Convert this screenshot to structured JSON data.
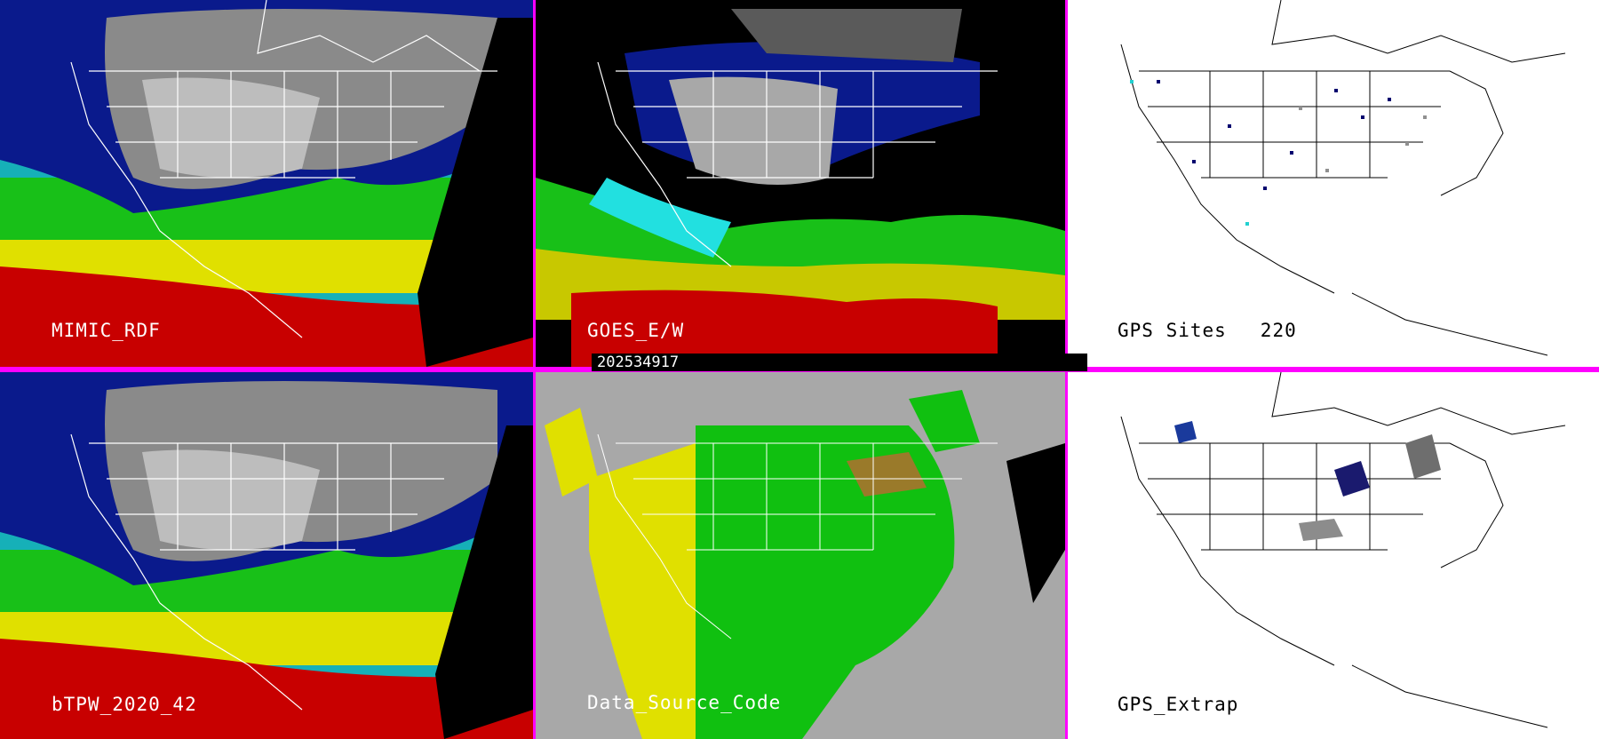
{
  "panels": {
    "mimic": {
      "label": "MIMIC_RDF"
    },
    "goes": {
      "label": "GOES_E/W"
    },
    "gps_sites": {
      "label": "GPS Sites",
      "count": "220"
    },
    "btpw": {
      "label": "bTPW_2020_42"
    },
    "data_source": {
      "label": "Data_Source_Code"
    },
    "gps_extrap": {
      "label": "GPS_Extrap"
    }
  },
  "timestamp": "202534917",
  "colors": {
    "divider": "#ff00ff",
    "tpw_dry": "#0a1a8c",
    "tpw_cyan": "#22e0e0",
    "tpw_green": "#18c018",
    "tpw_yellow": "#e0e000",
    "tpw_red": "#c80000",
    "source_gray": "#a8a8a8",
    "source_green": "#10c010",
    "source_yellow": "#e0e000"
  }
}
